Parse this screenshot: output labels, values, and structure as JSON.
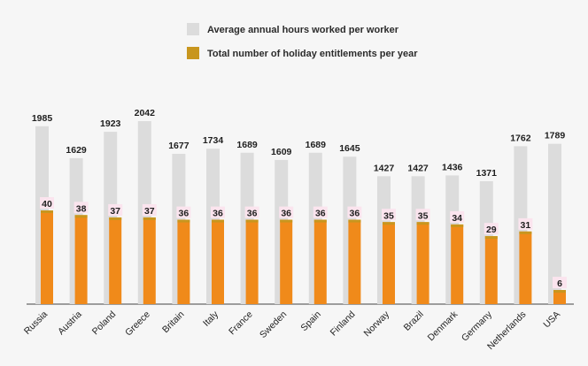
{
  "chart_data": {
    "type": "bar",
    "categories": [
      "Russia",
      "Austria",
      "Poland",
      "Greece",
      "Britain",
      "Italy",
      "France",
      "Sweden",
      "Spain",
      "Finland",
      "Norway",
      "Brazil",
      "Denmark",
      "Germany",
      "Netherlands",
      "USA"
    ],
    "series": [
      {
        "name": "Average annual hours worked per worker",
        "color": "#dcdcdc",
        "values": [
          1985,
          1629,
          1923,
          2042,
          1677,
          1734,
          1689,
          1609,
          1689,
          1645,
          1427,
          1427,
          1436,
          1371,
          1762,
          1789
        ]
      },
      {
        "name": "Total number of holiday entitlements per year",
        "color": "#f08a1a",
        "values": [
          40,
          38,
          37,
          37,
          36,
          36,
          36,
          36,
          36,
          36,
          35,
          35,
          34,
          29,
          31,
          6
        ]
      }
    ],
    "legend_position": "top-center",
    "grid": false
  }
}
